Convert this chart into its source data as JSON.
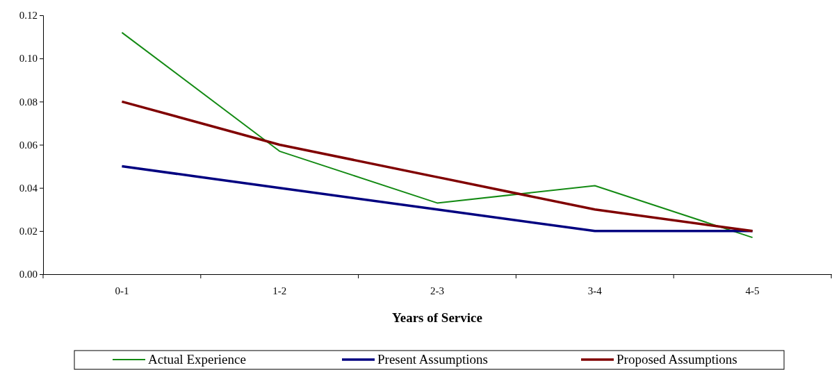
{
  "chart_data": {
    "type": "line",
    "xlabel": "Years of Service",
    "categories": [
      "0-1",
      "1-2",
      "2-3",
      "3-4",
      "4-5"
    ],
    "series": [
      {
        "name": "Actual Experience",
        "color": "#138a13",
        "values": [
          0.112,
          0.057,
          0.033,
          0.041,
          0.017
        ]
      },
      {
        "name": "Present Assumptions",
        "color": "#000080",
        "values": [
          0.05,
          0.04,
          0.03,
          0.02,
          0.02
        ]
      },
      {
        "name": "Proposed Assumptions",
        "color": "#800000",
        "values": [
          0.08,
          0.06,
          0.045,
          0.03,
          0.02
        ]
      }
    ],
    "ylim": [
      0,
      0.12
    ],
    "yticks": [
      {
        "value": 0,
        "label": "0.00"
      },
      {
        "value": 0.02,
        "label": "0.02"
      },
      {
        "value": 0.04,
        "label": "0.04"
      },
      {
        "value": 0.06,
        "label": "0.06"
      },
      {
        "value": 0.08,
        "label": "0.08"
      },
      {
        "value": 0.1,
        "label": "0.10"
      },
      {
        "value": 0.12,
        "label": "0.12"
      }
    ],
    "grid": false,
    "legend": "bottom",
    "marker": "none",
    "line_style": "solid"
  }
}
